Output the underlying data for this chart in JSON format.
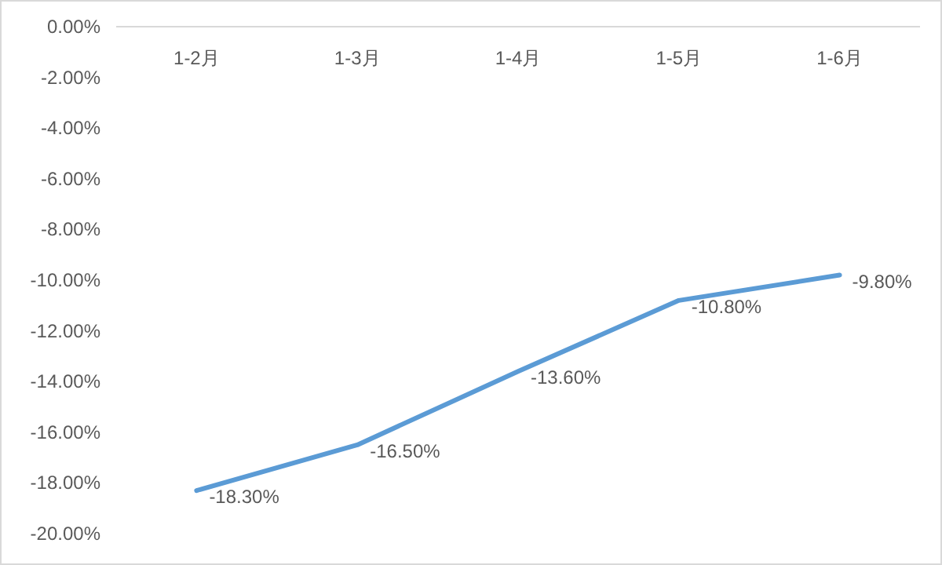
{
  "chart_data": {
    "type": "line",
    "categories": [
      "1-2月",
      "1-3月",
      "1-4月",
      "1-5月",
      "1-6月"
    ],
    "series": [
      {
        "color": "#5b9bd5",
        "values": [
          -18.3,
          -16.5,
          -13.6,
          -10.8,
          -9.8
        ],
        "value_labels": [
          "-18.30%",
          "-16.50%",
          "-13.60%",
          "-10.80%",
          "-9.80%"
        ]
      }
    ],
    "ylim": [
      -20,
      0
    ],
    "yticks": [
      {
        "value": 0,
        "label": "0.00%"
      },
      {
        "value": -2,
        "label": "-2.00%"
      },
      {
        "value": -4,
        "label": "-4.00%"
      },
      {
        "value": -6,
        "label": "-6.00%"
      },
      {
        "value": -8,
        "label": "-8.00%"
      },
      {
        "value": -10,
        "label": "-10.00%"
      },
      {
        "value": -12,
        "label": "-12.00%"
      },
      {
        "value": -14,
        "label": "-14.00%"
      },
      {
        "value": -16,
        "label": "-16.00%"
      },
      {
        "value": -18,
        "label": "-18.00%"
      },
      {
        "value": -20,
        "label": "-20.00%"
      }
    ],
    "grid": false,
    "marker": "none",
    "line_style": "solid"
  }
}
